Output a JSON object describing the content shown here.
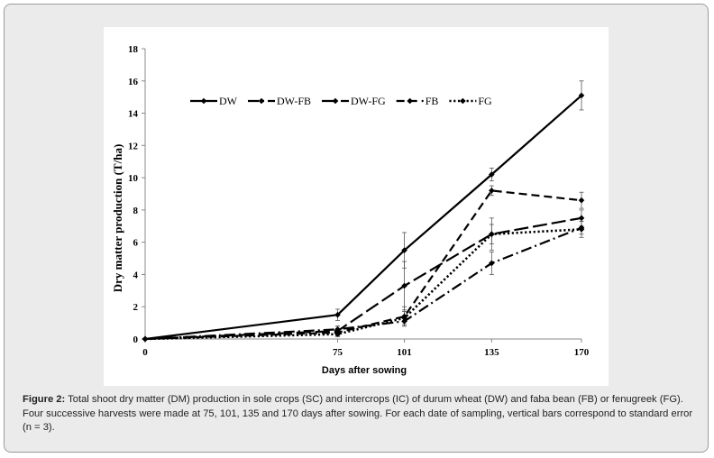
{
  "chart_data": {
    "type": "line",
    "x": [
      0,
      75,
      101,
      135,
      170
    ],
    "xlabel": "Days after sowing",
    "ylabel": "Dry matter production (T/ha)",
    "ylim": [
      0,
      18
    ],
    "yticks": [
      0,
      2,
      4,
      6,
      8,
      10,
      12,
      14,
      16,
      18
    ],
    "grid": false,
    "legend_position": "top-left",
    "series": [
      {
        "name": "DW",
        "values": [
          0,
          1.5,
          5.5,
          10.2,
          15.1
        ],
        "errors": [
          0,
          0.35,
          1.1,
          0.4,
          0.9
        ],
        "dash": "solid",
        "marker": "diamond"
      },
      {
        "name": "DW-FB",
        "values": [
          0,
          0.6,
          1.1,
          4.7,
          6.9
        ],
        "errors": [
          0,
          0.2,
          0.3,
          0.7,
          0.4
        ],
        "dash": "dashdot",
        "marker": "diamond"
      },
      {
        "name": "DW-FG",
        "values": [
          0,
          0.5,
          3.3,
          6.5,
          7.5
        ],
        "errors": [
          0,
          0.3,
          1.5,
          1.0,
          0.5
        ],
        "dash": "longdash",
        "marker": "diamond"
      },
      {
        "name": "FB",
        "values": [
          0,
          0.4,
          1.4,
          9.2,
          8.6
        ],
        "errors": [
          0,
          0.2,
          0.6,
          0.3,
          0.5
        ],
        "dash": "dash",
        "marker": "diamond"
      },
      {
        "name": "FG",
        "values": [
          0,
          0.3,
          1.3,
          6.5,
          6.8
        ],
        "errors": [
          0,
          0.15,
          0.4,
          0.6,
          0.5
        ],
        "dash": "dot",
        "marker": "diamond"
      }
    ]
  },
  "caption": {
    "label": "Figure 2:",
    "text": "Total shoot dry matter (DM) production in sole crops (SC) and intercrops (IC) of durum wheat (DW) and faba  bean (FB) or fenugreek (FG). Four successive harvests were made at 75, 101, 135 and 170 days after sowing. For each date of sampling, vertical bars correspond to standard error (n = 3)."
  }
}
